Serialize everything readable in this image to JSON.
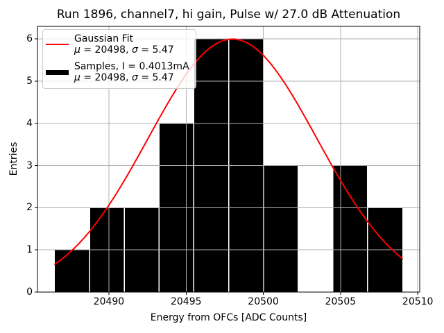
{
  "chart_data": {
    "type": "bar",
    "subtype": "histogram-with-gaussian-fit",
    "title": "Run 1896, channel7, hi gain, Pulse w/ 27.0 dB Attenuation",
    "xlabel": "Energy from OFCs [ADC Counts]",
    "ylabel": "Entries",
    "xlim": [
      20485.375,
      20510.125
    ],
    "ylim": [
      0,
      6.3
    ],
    "x_ticks": [
      20490,
      20495,
      20500,
      20505,
      20510
    ],
    "y_ticks": [
      0,
      1,
      2,
      3,
      4,
      5,
      6
    ],
    "grid": true,
    "grid_color": "#b0b0b0",
    "background_color": "#ffffff",
    "bar_color": "#000000",
    "bar_separator_color": "#ffffff",
    "bins": {
      "start": 20486.5,
      "bin_width": 2.25,
      "edges": [
        20486.5,
        20488.75,
        20491.0,
        20493.25,
        20495.5,
        20497.75,
        20500.0,
        20502.25,
        20504.5,
        20506.75,
        20509.0
      ],
      "counts": [
        1,
        2,
        2,
        4,
        6,
        6,
        3,
        0,
        3,
        2
      ]
    },
    "fit_curve": {
      "shape": "gaussian",
      "amplitude": 6.0,
      "mu": 20498,
      "sigma": 5.47,
      "x_start": 20486.5,
      "x_end": 20509.0,
      "color": "#ff0000",
      "line_width": 2
    },
    "legend": {
      "position": "upper left",
      "entries": [
        {
          "swatch": "line",
          "color": "#ff0000",
          "label_lines": [
            "Gaussian Fit",
            "μ = 20498, σ = 5.47"
          ]
        },
        {
          "swatch": "patch",
          "color": "#000000",
          "label_lines": [
            "Samples, I = 0.4013mA",
            "μ = 20498, σ = 5.47"
          ]
        }
      ]
    }
  }
}
